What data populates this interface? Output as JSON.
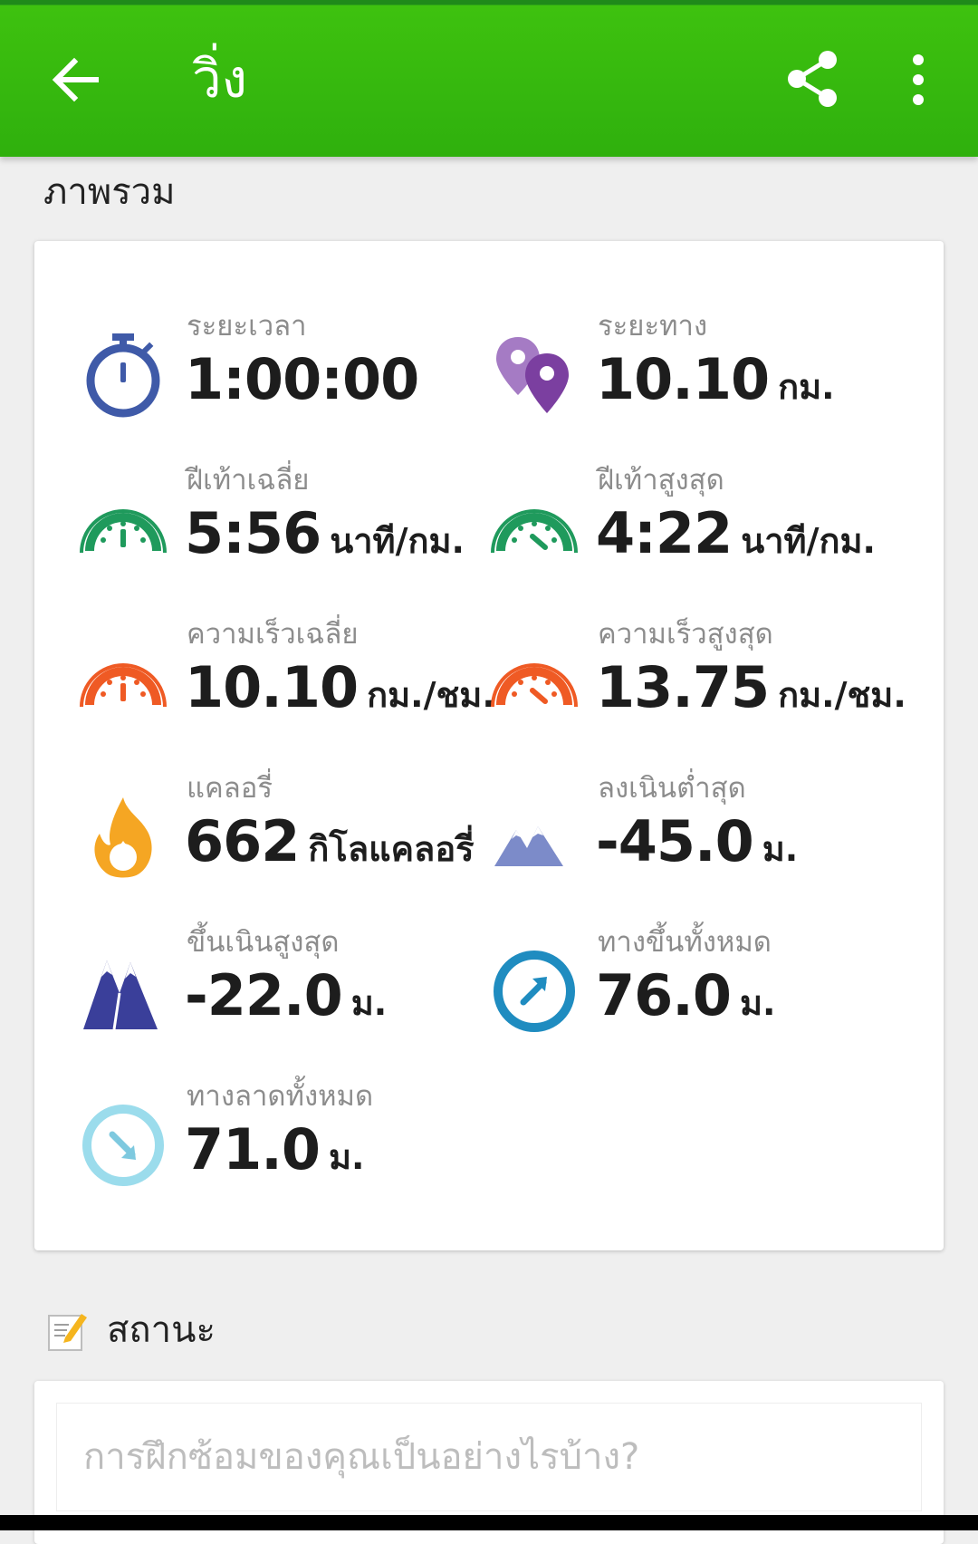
{
  "header": {
    "title": "วิ่ง",
    "icons": {
      "back": "back-arrow-icon",
      "share": "share-icon",
      "more": "more-vert-icon"
    },
    "accent_color": "#3ec20f"
  },
  "overview": {
    "section_title": "ภาพรวม",
    "stats": [
      {
        "label": "ระยะเวลา",
        "value": "1:00:00",
        "unit": "",
        "icon": "stopwatch-icon",
        "color": "#3f5aa8"
      },
      {
        "label": "ระยะทาง",
        "value": "10.10",
        "unit": "กม.",
        "icon": "map-pins-icon",
        "color": "#7b3fa0"
      },
      {
        "label": "ฝีเท้าเฉลี่ย",
        "value": "5:56",
        "unit": "นาที/กม.",
        "icon": "avg-pace-gauge-icon",
        "color": "#1f9a5c"
      },
      {
        "label": "ฝีเท้าสูงสุด",
        "value": "4:22",
        "unit": "นาที/กม.",
        "icon": "max-pace-gauge-icon",
        "color": "#1f9a5c"
      },
      {
        "label": "ความเร็วเฉลี่ย",
        "value": "10.10",
        "unit": "กม./ชม.",
        "icon": "avg-speed-gauge-icon",
        "color": "#ef5a24"
      },
      {
        "label": "ความเร็วสูงสุด",
        "value": "13.75",
        "unit": "กม./ชม.",
        "icon": "max-speed-gauge-icon",
        "color": "#ef5a24"
      },
      {
        "label": "แคลอรี่",
        "value": "662",
        "unit": "กิโลแคลอรี่",
        "icon": "flame-icon",
        "color": "#f5a623"
      },
      {
        "label": "ลงเนินต่ำสุด",
        "value": "-45.0",
        "unit": "ม.",
        "icon": "low-mountains-icon",
        "color": "#7c8bc9"
      },
      {
        "label": "ขึ้นเนินสูงสุด",
        "value": "-22.0",
        "unit": "ม.",
        "icon": "high-mountains-icon",
        "color": "#3a3f9a"
      },
      {
        "label": "ทางขึ้นทั้งหมด",
        "value": "76.0",
        "unit": "ม.",
        "icon": "ascent-arrow-icon",
        "color": "#1f8cc0"
      },
      {
        "label": "ทางลาดทั้งหมด",
        "value": "71.0",
        "unit": "ม.",
        "icon": "descent-arrow-icon",
        "color": "#9bdcec"
      }
    ]
  },
  "status": {
    "label": "สถานะ",
    "icon": "note-edit-icon",
    "placeholder": "การฝึกซ้อมของคุณเป็นอย่างไรบ้าง?",
    "value": ""
  }
}
